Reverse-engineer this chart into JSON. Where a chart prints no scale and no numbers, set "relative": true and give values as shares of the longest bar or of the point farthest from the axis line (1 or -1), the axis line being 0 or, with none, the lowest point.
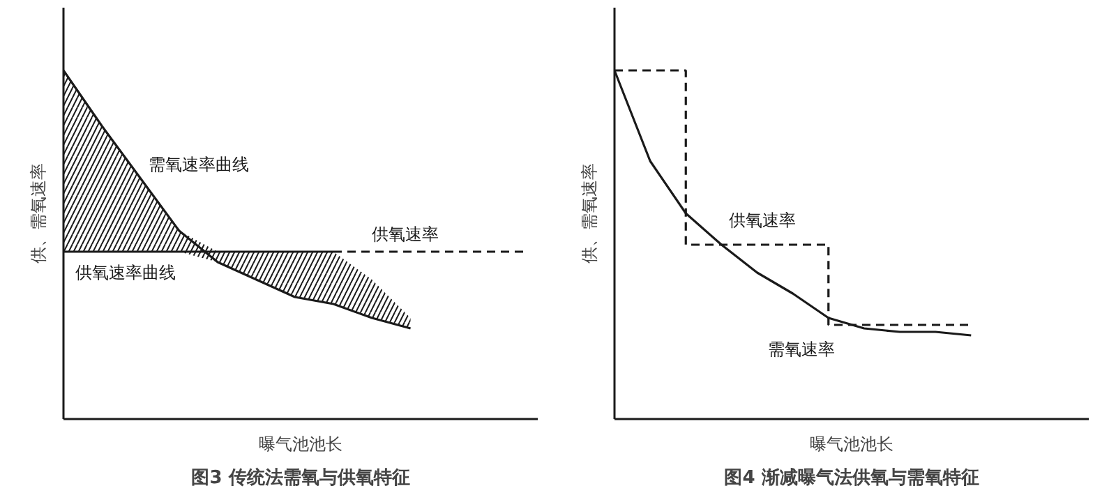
{
  "chart_data": [
    {
      "type": "line",
      "title": "图3 传统法需氧与供氧特征",
      "xlabel": "曝气池池长",
      "ylabel": "供、需氧速率",
      "relative": true,
      "categories": [
        null,
        null,
        null,
        null,
        null,
        null,
        null,
        null,
        null,
        null,
        null,
        null,
        null
      ],
      "series": [
        {
          "name": "需氧速率曲线",
          "color": "#1a1a1a",
          "values": [
            1.0,
            0.84,
            0.69,
            0.54,
            0.45,
            0.4,
            0.35,
            0.33,
            0.29,
            0.26,
            null,
            null,
            null
          ],
          "lower": [
            0.48,
            0.48,
            0.48,
            0.48,
            0.45,
            0.4,
            0.35,
            0.33,
            0.29,
            0.26,
            null,
            null,
            null
          ],
          "upper": [
            1.0,
            0.84,
            0.69,
            0.54,
            0.48,
            0.48,
            0.48,
            0.48,
            0.4,
            0.29,
            null,
            null,
            null
          ]
        },
        {
          "name": "供氧速率曲线",
          "color": "#1a1a1a",
          "values": [
            0.48,
            0.48,
            0.48,
            0.48,
            0.48,
            0.48,
            0.48,
            0.48,
            null,
            null,
            null,
            null,
            null
          ]
        },
        {
          "name": "供氧速率",
          "color": "#1a1a1a",
          "line_style": "dashed",
          "values": [
            null,
            null,
            null,
            null,
            null,
            null,
            null,
            0.48,
            0.48,
            0.48,
            0.48,
            0.48,
            0.48
          ]
        }
      ]
    },
    {
      "type": "line",
      "title": "图4 渐减曝气法供氧与需氧特征",
      "xlabel": "曝气池池长",
      "ylabel": "供、需氧速率",
      "relative": true,
      "categories": [
        null,
        null,
        null,
        null,
        null,
        null,
        null,
        null,
        null,
        null,
        null,
        null,
        null,
        null
      ],
      "series": [
        {
          "name": "需氧速率",
          "color": "#1a1a1a",
          "values": [
            1.0,
            0.74,
            0.59,
            0.5,
            0.42,
            0.36,
            0.29,
            0.26,
            0.25,
            0.25,
            0.24,
            null,
            null,
            null
          ]
        },
        {
          "name": "供氧速率",
          "color": "#1a1a1a",
          "type": "step",
          "line_style": "dashed",
          "values": [
            1.0,
            1.0,
            0.5,
            0.5,
            0.5,
            0.5,
            0.27,
            0.27,
            0.27,
            0.27,
            0.27,
            null,
            null,
            null
          ]
        }
      ]
    }
  ]
}
